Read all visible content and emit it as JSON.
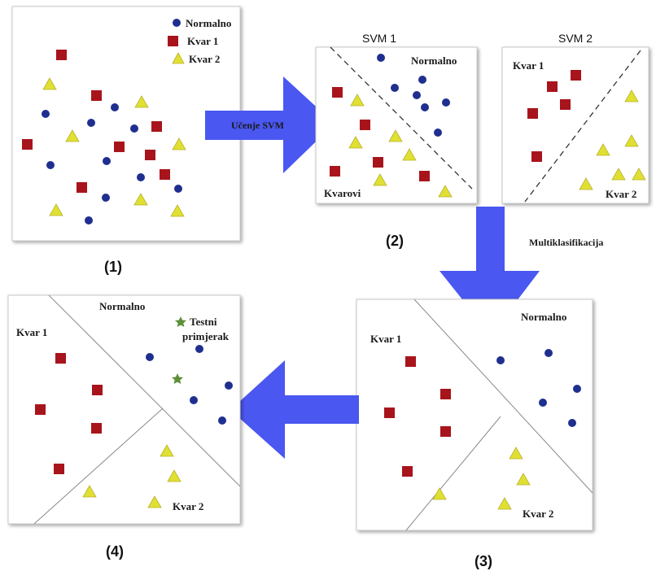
{
  "labels": {
    "normalno": "Normalno",
    "kvar1": "Kvar 1",
    "kvar2": "Kvar 2",
    "kvarovi": "Kvarovi",
    "svm1": "SVM  1",
    "svm2": "SVM  2",
    "ucenje": "Učenje SVM",
    "multi": "Multiklasifikacija",
    "testni_line1": "Testni",
    "testni_line2": "primjerak",
    "step1": "(1)",
    "step2": "(2)",
    "step3": "(3)",
    "step4": "(4)"
  },
  "colors": {
    "circle": "#1f2f8f",
    "square": "#a8141b",
    "triangle": "#e0e032",
    "triangle_stroke": "#b8b02a",
    "star": "#5e8f3a",
    "arrow": "#4a57f0",
    "panel_border": "#c8c8c8"
  },
  "icons": {
    "normal_class": "circle-icon",
    "fault1_class": "square-icon",
    "fault2_class": "triangle-icon",
    "test_sample": "star-icon",
    "flow": "arrow-icon"
  }
}
